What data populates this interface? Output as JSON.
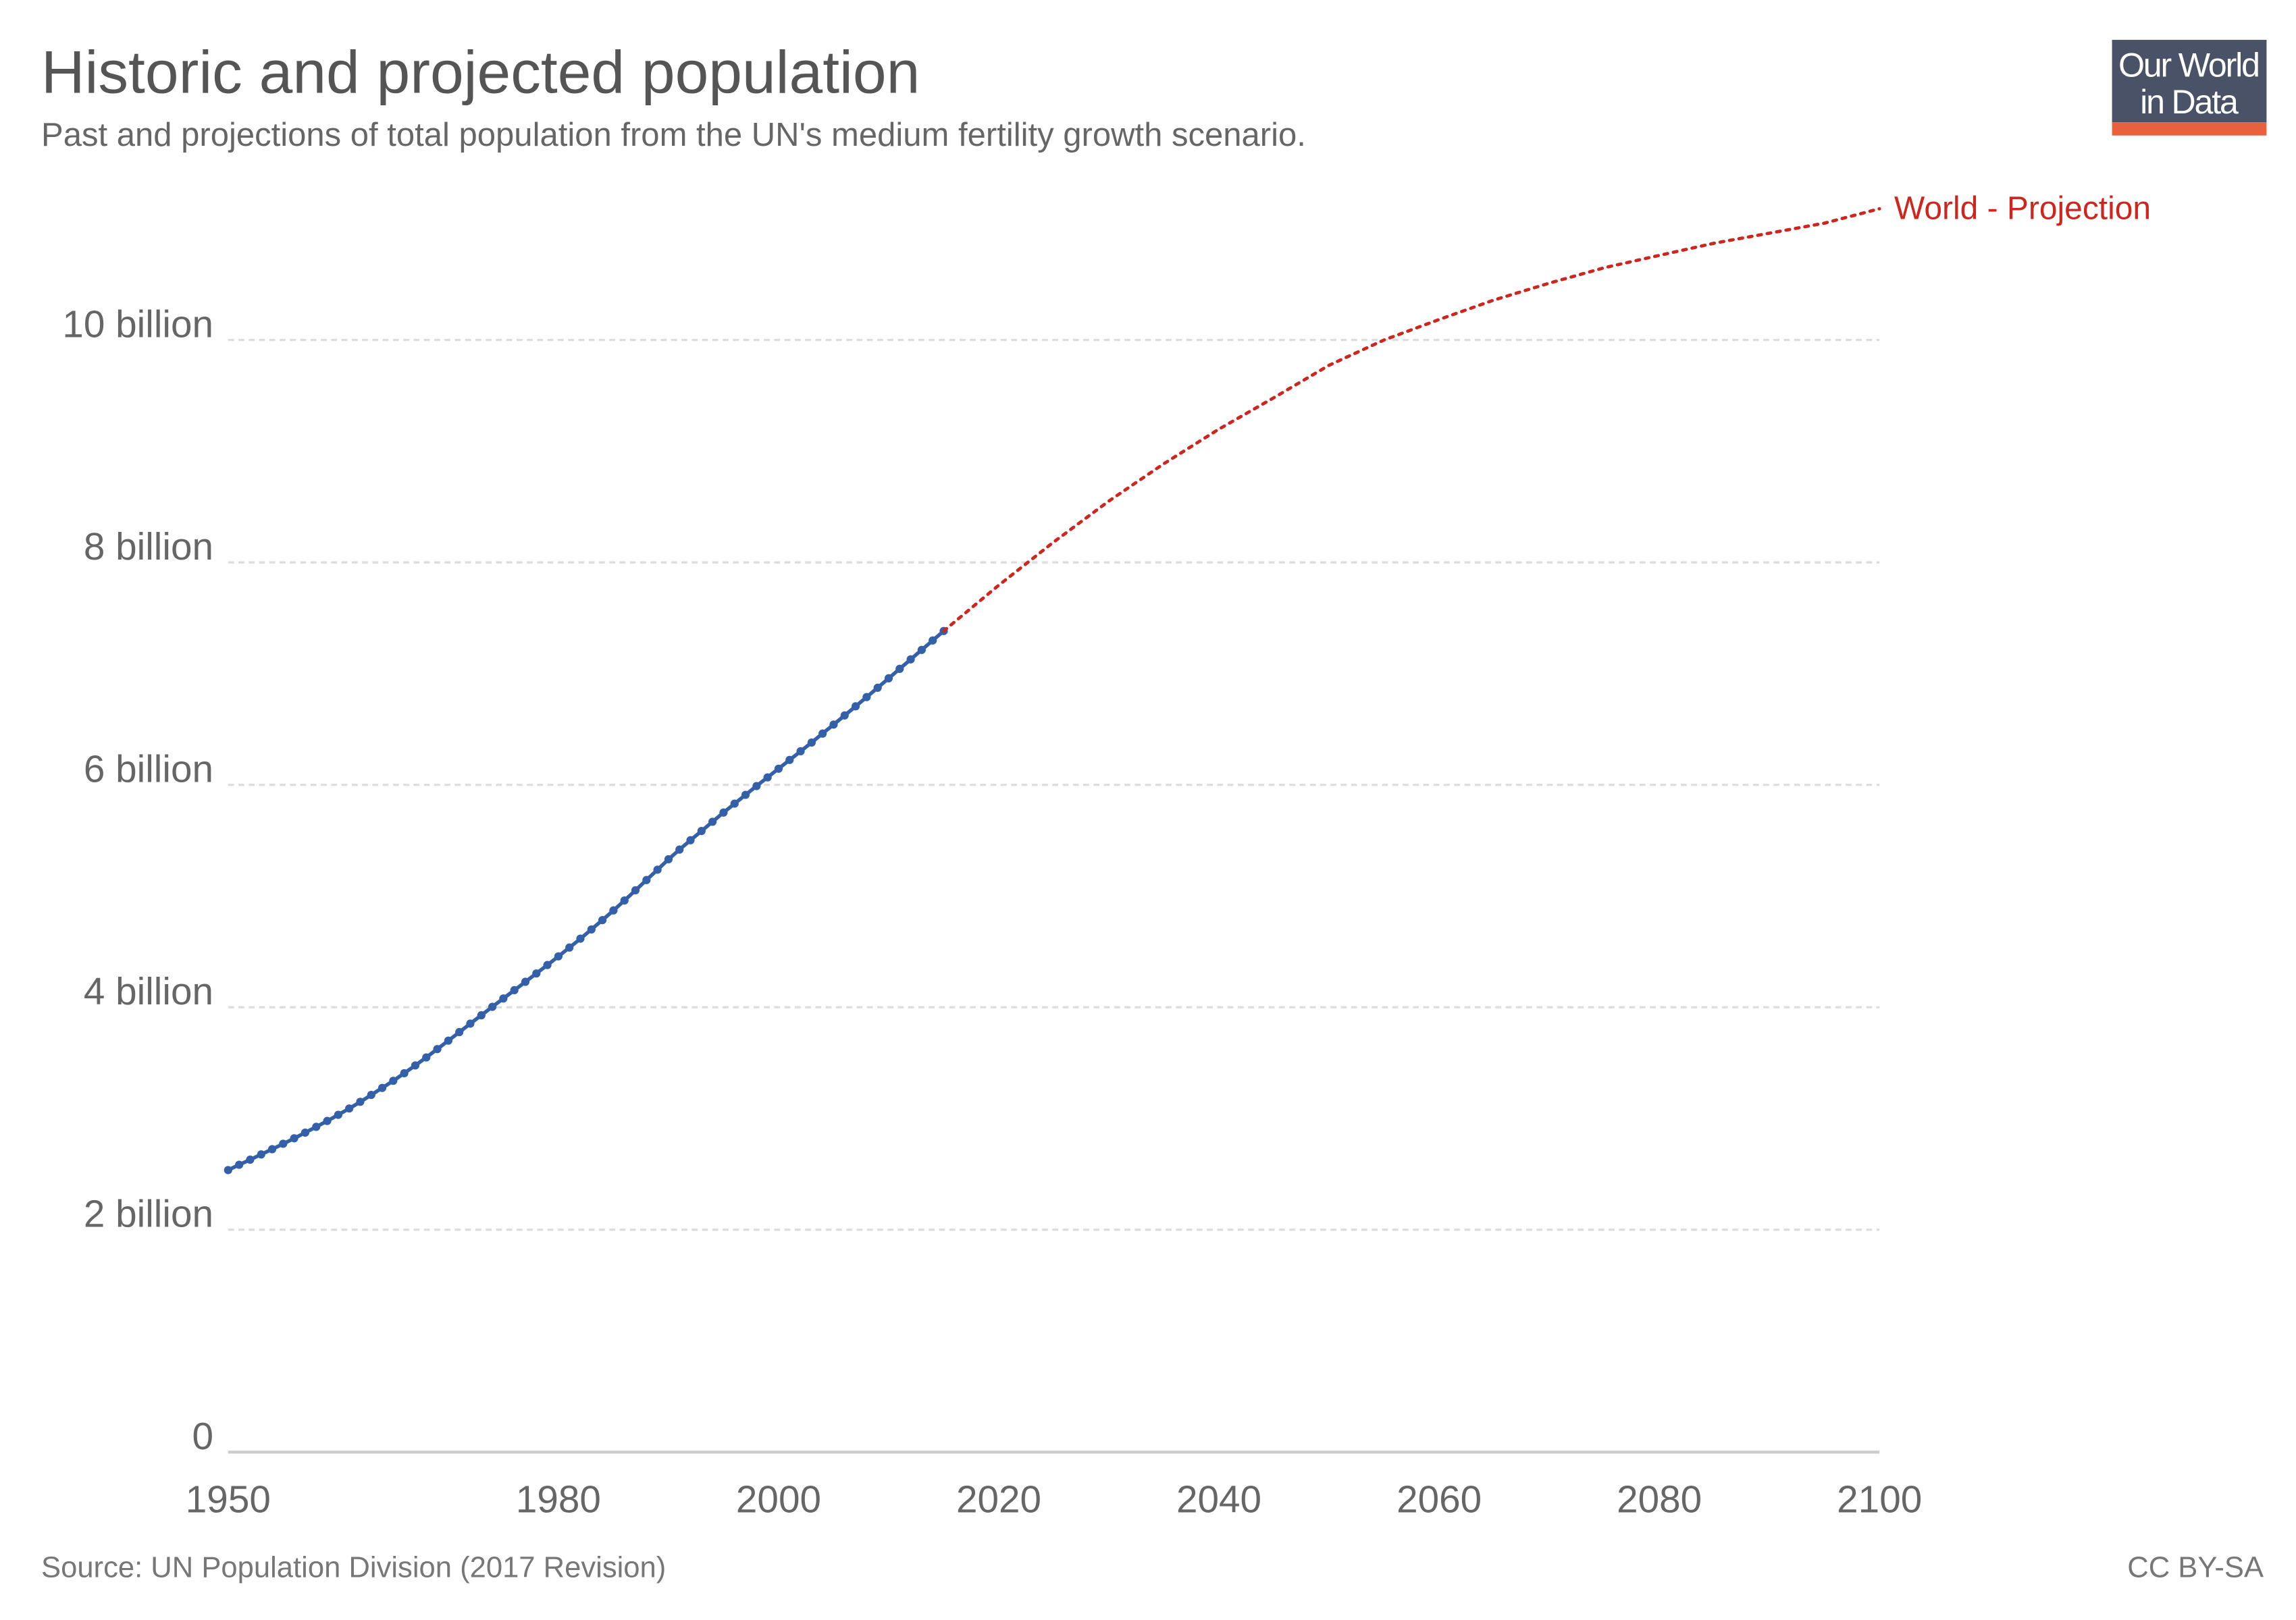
{
  "header": {
    "title": "Historic and projected population",
    "subtitle": "Past and projections of total population from the UN's medium fertility growth scenario."
  },
  "logo": {
    "line1": "Our World",
    "line2": "in Data",
    "bg": "#4a5268",
    "accent": "#e8603c"
  },
  "footer": {
    "source": "Source: UN Population Division (2017 Revision)",
    "license": "CC BY-SA"
  },
  "chart_data": {
    "type": "line",
    "title": "Historic and projected population",
    "xlim": [
      1950,
      2100
    ],
    "ylim": [
      0,
      11.2
    ],
    "x_ticks": [
      1950,
      1980,
      2000,
      2020,
      2040,
      2060,
      2080,
      2100
    ],
    "y_ticks": [
      {
        "value": 0,
        "label": "0"
      },
      {
        "value": 2,
        "label": "2 billion"
      },
      {
        "value": 4,
        "label": "4 billion"
      },
      {
        "value": 6,
        "label": "6 billion"
      },
      {
        "value": 8,
        "label": "8 billion"
      },
      {
        "value": 10,
        "label": "10 billion"
      }
    ],
    "grid": "horizontal dashed",
    "units": "billion",
    "series": [
      {
        "style": "solid with markers",
        "color": "#3360a9",
        "x": [
          1950,
          1951,
          1952,
          1953,
          1954,
          1955,
          1956,
          1957,
          1958,
          1959,
          1960,
          1961,
          1962,
          1963,
          1964,
          1965,
          1966,
          1967,
          1968,
          1969,
          1970,
          1971,
          1972,
          1973,
          1974,
          1975,
          1976,
          1977,
          1978,
          1979,
          1980,
          1981,
          1982,
          1983,
          1984,
          1985,
          1986,
          1987,
          1988,
          1989,
          1990,
          1991,
          1992,
          1993,
          1994,
          1995,
          1996,
          1997,
          1998,
          1999,
          2000,
          2001,
          2002,
          2003,
          2004,
          2005,
          2006,
          2007,
          2008,
          2009,
          2010,
          2011,
          2012,
          2013,
          2014,
          2015
        ],
        "y": [
          2.536,
          2.584,
          2.63,
          2.677,
          2.724,
          2.773,
          2.822,
          2.873,
          2.925,
          2.978,
          3.033,
          3.09,
          3.15,
          3.212,
          3.275,
          3.339,
          3.407,
          3.477,
          3.549,
          3.624,
          3.7,
          3.777,
          3.853,
          3.928,
          4.004,
          4.079,
          4.154,
          4.229,
          4.304,
          4.38,
          4.458,
          4.537,
          4.617,
          4.7,
          4.784,
          4.871,
          4.96,
          5.052,
          5.144,
          5.237,
          5.331,
          5.418,
          5.502,
          5.585,
          5.668,
          5.751,
          5.831,
          5.91,
          5.989,
          6.067,
          6.145,
          6.224,
          6.302,
          6.38,
          6.461,
          6.542,
          6.624,
          6.706,
          6.789,
          6.873,
          6.958,
          7.043,
          7.128,
          7.213,
          7.298,
          7.383
        ]
      },
      {
        "name": "World - Projection",
        "style": "dotted",
        "color": "#ce261e",
        "x": [
          2015,
          2020,
          2025,
          2030,
          2035,
          2040,
          2045,
          2050,
          2055,
          2060,
          2065,
          2070,
          2075,
          2080,
          2085,
          2090,
          2095,
          2100
        ],
        "y": [
          7.383,
          7.795,
          8.184,
          8.551,
          8.888,
          9.199,
          9.482,
          9.772,
          10.0,
          10.184,
          10.36,
          10.51,
          10.65,
          10.76,
          10.87,
          10.96,
          11.05,
          11.18
        ]
      }
    ]
  }
}
